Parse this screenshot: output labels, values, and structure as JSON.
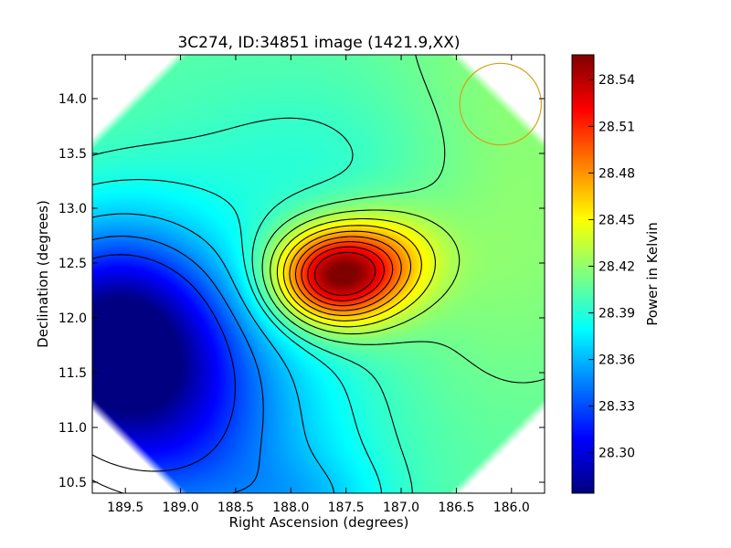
{
  "chart_data": {
    "type": "heatmap",
    "title": "3C274, ID:34851 image (1421.9,XX)",
    "xlabel": "Right Ascension (degrees)",
    "ylabel": "Declination (degrees)",
    "xlim": [
      189.8,
      185.7
    ],
    "ylim": [
      10.4,
      14.4
    ],
    "x_ticks": [
      {
        "value": 189.5,
        "label": "189.5"
      },
      {
        "value": 189.0,
        "label": "189.0"
      },
      {
        "value": 188.5,
        "label": "188.5"
      },
      {
        "value": 188.0,
        "label": "188.0"
      },
      {
        "value": 187.5,
        "label": "187.5"
      },
      {
        "value": 187.0,
        "label": "187.0"
      },
      {
        "value": 186.5,
        "label": "186.5"
      },
      {
        "value": 186.0,
        "label": "186.0"
      }
    ],
    "y_ticks": [
      {
        "value": 10.5,
        "label": "10.5"
      },
      {
        "value": 11.0,
        "label": "11.0"
      },
      {
        "value": 11.5,
        "label": "11.5"
      },
      {
        "value": 12.0,
        "label": "12.0"
      },
      {
        "value": 12.5,
        "label": "12.5"
      },
      {
        "value": 13.0,
        "label": "13.0"
      },
      {
        "value": 13.5,
        "label": "13.5"
      },
      {
        "value": 14.0,
        "label": "14.0"
      }
    ],
    "colorbar": {
      "label": "Power in Kelvin",
      "colormap": "jet",
      "range": [
        28.274,
        28.556
      ],
      "ticks": [
        {
          "value": 28.3,
          "label": "28.30"
        },
        {
          "value": 28.33,
          "label": "28.33"
        },
        {
          "value": 28.36,
          "label": "28.36"
        },
        {
          "value": 28.39,
          "label": "28.39"
        },
        {
          "value": 28.42,
          "label": "28.42"
        },
        {
          "value": 28.45,
          "label": "28.45"
        },
        {
          "value": 28.48,
          "label": "28.48"
        },
        {
          "value": 28.51,
          "label": "28.51"
        },
        {
          "value": 28.54,
          "label": "28.54"
        }
      ]
    },
    "field": {
      "base": 28.405,
      "components": [
        {
          "ra": 187.6,
          "dec": 12.38,
          "sigma_ra": 0.38,
          "sigma_dec": 0.3,
          "amp": 0.15
        },
        {
          "ra": 187.1,
          "dec": 12.55,
          "sigma_ra": 0.35,
          "sigma_dec": 0.3,
          "amp": 0.04
        },
        {
          "ra": 189.6,
          "dec": 11.8,
          "sigma_ra": 0.7,
          "sigma_dec": 0.7,
          "amp": -0.13
        },
        {
          "ra": 188.9,
          "dec": 10.9,
          "sigma_ra": 1.0,
          "sigma_dec": 0.9,
          "amp": -0.06
        },
        {
          "ra": 187.5,
          "dec": 13.4,
          "sigma_ra": 1.2,
          "sigma_dec": 0.6,
          "amp": -0.015
        },
        {
          "ra": 186.1,
          "dec": 13.3,
          "sigma_ra": 0.8,
          "sigma_dec": 1.2,
          "amp": 0.02
        },
        {
          "ra": 187.8,
          "dec": 10.3,
          "sigma_ra": 0.5,
          "sigma_dec": 0.3,
          "amp": -0.02
        }
      ],
      "contour_levels": [
        28.325,
        28.345,
        28.365,
        28.385,
        28.395,
        28.41,
        28.425,
        28.44,
        28.455,
        28.47,
        28.485,
        28.5,
        28.515,
        28.53
      ],
      "beam_circle": {
        "ra": 186.1,
        "dec": 13.95,
        "radius_deg": 0.37,
        "color": "#d4a017"
      },
      "corner_cut_deg": 0.75
    },
    "grid": false,
    "legend": "none"
  }
}
